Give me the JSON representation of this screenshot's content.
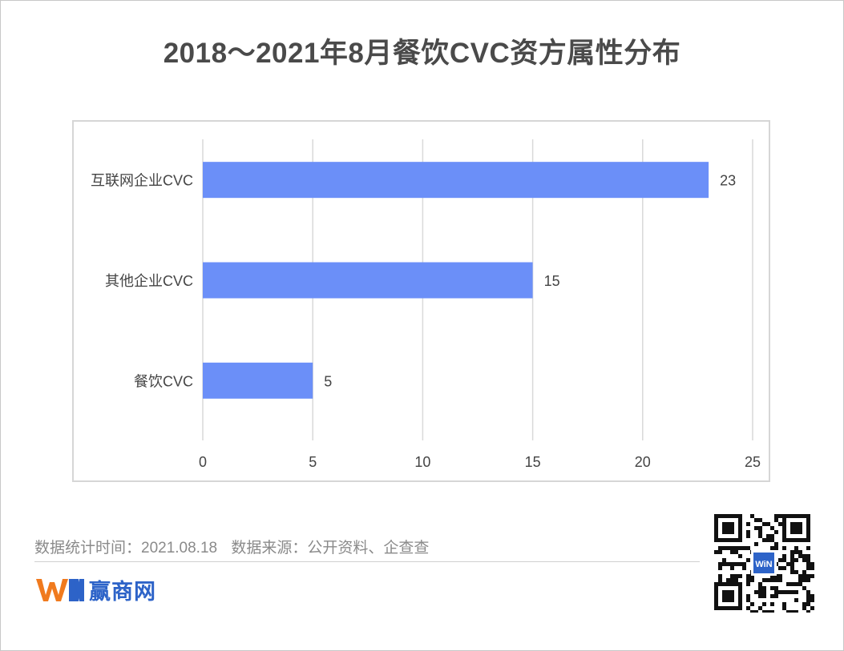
{
  "title": "2018～2021年8月餐饮CVC资方属性分布",
  "footer": {
    "stats_time": "数据统计时间：2021.08.18",
    "data_source": "数据来源：公开资料、企查查",
    "brand": "赢商网"
  },
  "colors": {
    "bar": "#6b8ff8",
    "grid": "#d9d9d9",
    "brand_orange": "#f07a1e",
    "brand_blue": "#2d63c8"
  },
  "chart_data": {
    "type": "bar",
    "orientation": "horizontal",
    "title": "2018～2021年8月餐饮CVC资方属性分布",
    "categories": [
      "互联网企业CVC",
      "其他企业CVC",
      "餐饮CVC"
    ],
    "values": [
      23,
      15,
      5
    ],
    "xlim": [
      0,
      25
    ],
    "xticks": [
      0,
      5,
      10,
      15,
      20,
      25
    ],
    "xlabel": "",
    "ylabel": "",
    "grid": true,
    "data_labels": true,
    "legend": "none"
  }
}
